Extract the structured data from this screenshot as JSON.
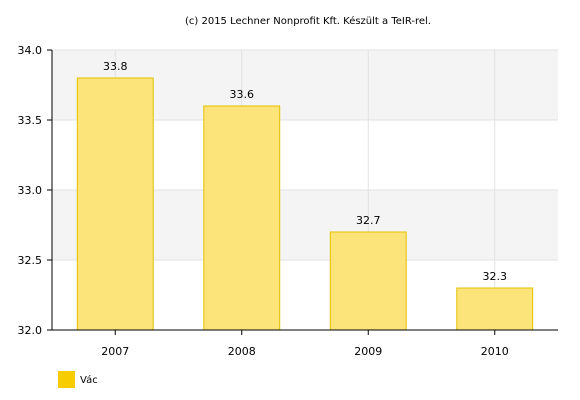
{
  "chart_data": {
    "type": "bar",
    "title": "(c) 2015 Lechner Nonprofit Kft. Készült a TeIR-rel.",
    "categories": [
      "2007",
      "2008",
      "2009",
      "2010"
    ],
    "series": [
      {
        "name": "Vác",
        "values": [
          33.8,
          33.6,
          32.7,
          32.3
        ],
        "color": "#fce37a"
      }
    ],
    "data_labels": [
      "33.8",
      "33.6",
      "32.7",
      "32.3"
    ],
    "ylim": [
      32.0,
      34.0
    ],
    "yticks": [
      32.0,
      32.5,
      33.0,
      33.5,
      34.0
    ],
    "ytick_labels": [
      "32.0",
      "32.5",
      "33.0",
      "33.5",
      "34.0"
    ],
    "grid": true,
    "legend_position": "bottom-left",
    "colors": {
      "bar_fill": "#fce37a",
      "bar_stroke": "#e3c000",
      "legend_swatch": "#f7cc00",
      "band": "#f4f4f4",
      "axis": "#000000",
      "grid": "#e2e2e2"
    }
  }
}
